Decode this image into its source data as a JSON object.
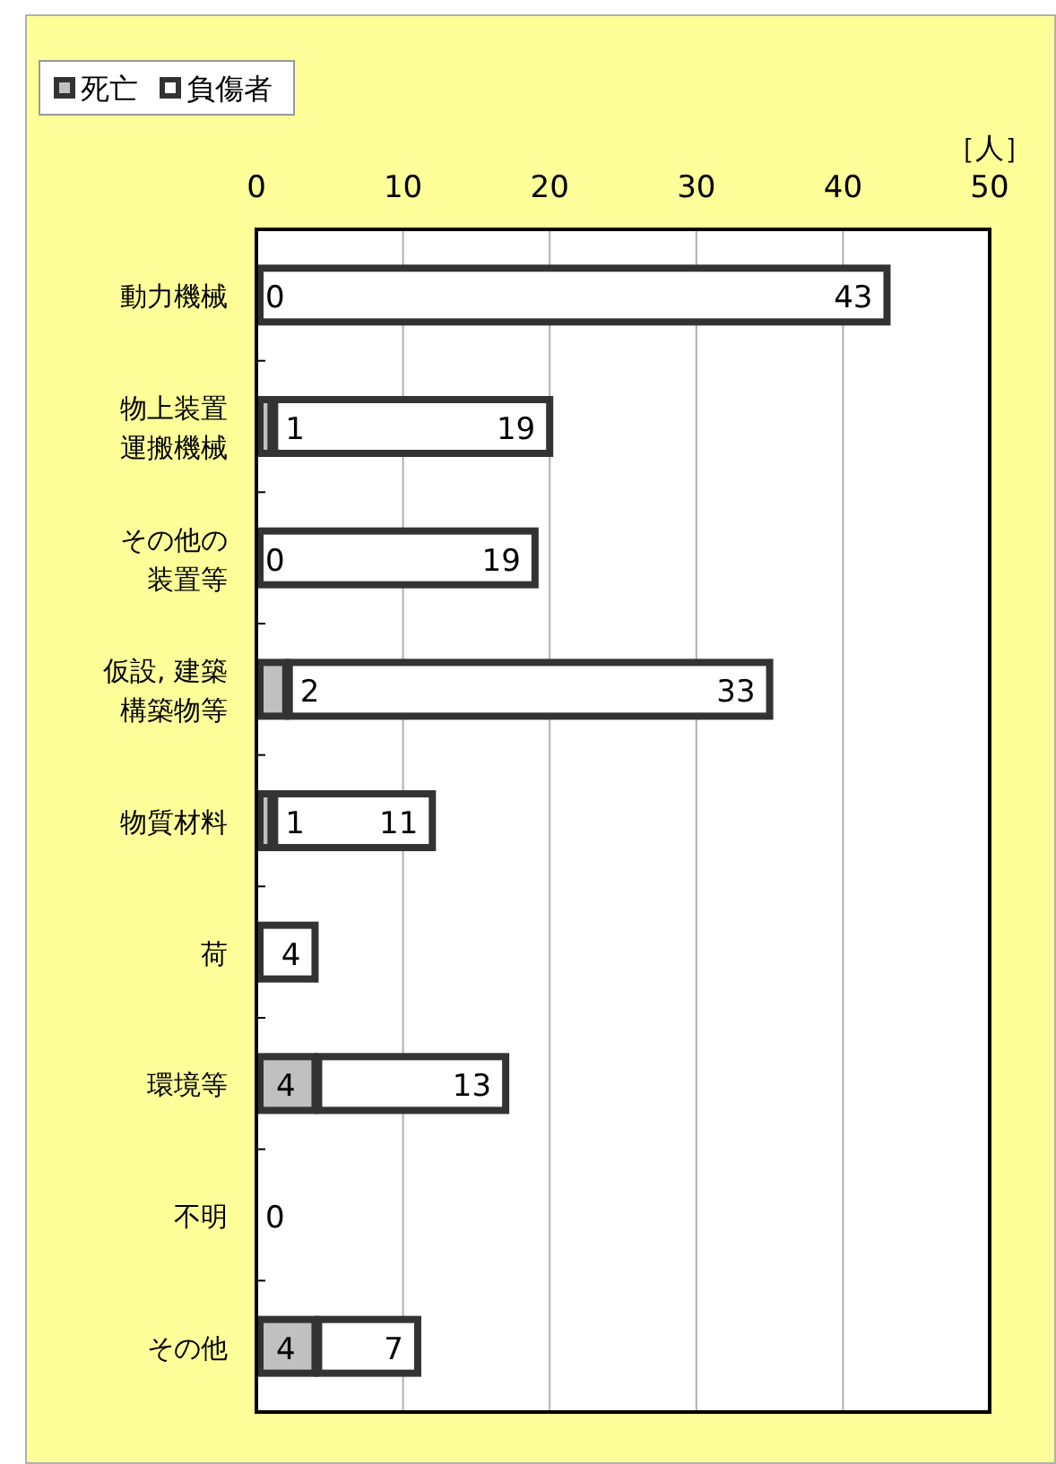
{
  "chart_data": {
    "type": "bar",
    "orientation": "horizontal",
    "stacked": true,
    "xlabel": "［人］",
    "categories": [
      "動力機械",
      "物上装置運搬機械",
      "その他の装置等",
      "仮設, 建築構築物等",
      "物質材料",
      "荷",
      "環境等",
      "不明",
      "その他"
    ],
    "series": [
      {
        "name": "死亡",
        "color": "#c0c0c0",
        "values": [
          0,
          1,
          0,
          2,
          1,
          0,
          4,
          0,
          4
        ],
        "value_labels": [
          "0",
          "1",
          "0",
          "2",
          "1",
          null,
          "4",
          "0",
          "4"
        ]
      },
      {
        "name": "負傷者",
        "color": "#ffffff",
        "values": [
          43,
          19,
          19,
          33,
          11,
          4,
          13,
          0,
          7
        ],
        "value_labels": [
          "43",
          "19",
          "19",
          "33",
          "11",
          "4",
          "13",
          null,
          "7"
        ]
      }
    ],
    "xlim": [
      0,
      50
    ],
    "xticks": [
      0,
      10,
      20,
      30,
      40,
      50
    ],
    "grid": "x",
    "legend": "top left"
  }
}
